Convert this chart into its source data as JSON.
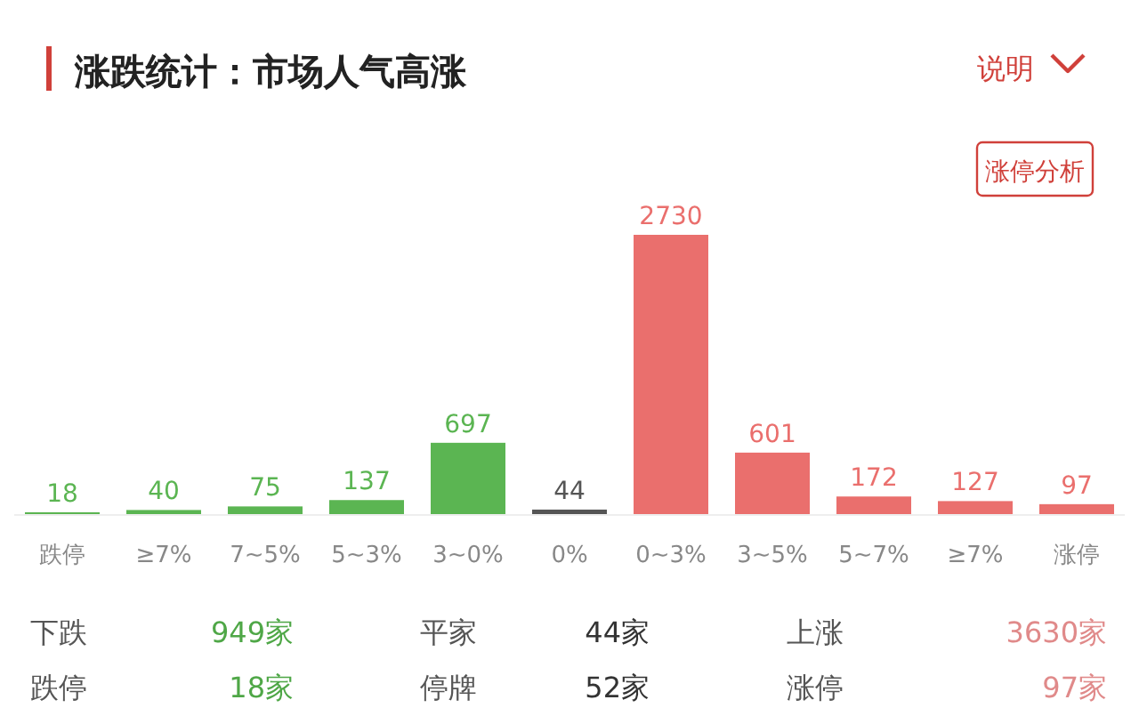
{
  "chart_data": {
    "type": "bar",
    "title": "涨跌统计：市场人气高涨",
    "categories": [
      "跌停",
      "≥7%",
      "7~5%",
      "5~3%",
      "3~0%",
      "0%",
      "0~3%",
      "3~5%",
      "5~7%",
      "≥7%",
      "涨停"
    ],
    "values": [
      18,
      40,
      75,
      137,
      697,
      44,
      2730,
      601,
      172,
      127,
      97
    ],
    "colors": [
      "#5bb552",
      "#5bb552",
      "#5bb552",
      "#5bb552",
      "#5bb552",
      "#555555",
      "#ea6f6d",
      "#ea6f6d",
      "#ea6f6d",
      "#ea6f6d",
      "#ea6f6d"
    ],
    "data_labels": true,
    "annotations": [
      "说明",
      "涨停分析",
      "下跌",
      "949家",
      "平家",
      "44家",
      "上涨",
      "3630家",
      "跌停",
      "18家",
      "停牌",
      "52家",
      "涨停",
      "97家"
    ]
  }
}
